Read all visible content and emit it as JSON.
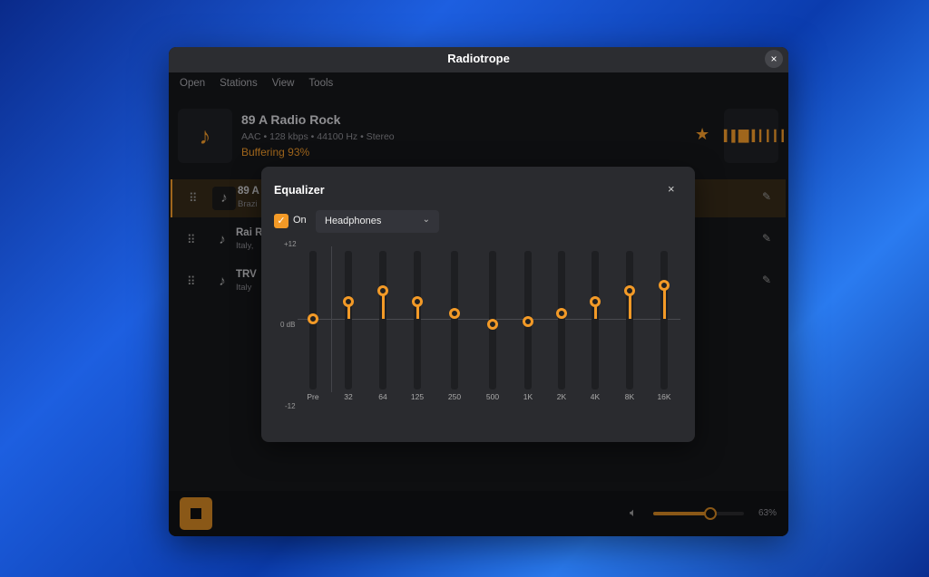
{
  "window": {
    "title": "Radiotrope",
    "close_icon": "×"
  },
  "menu": [
    "Open",
    "Stations",
    "View",
    "Tools"
  ],
  "now_playing": {
    "name": "89 A Radio Rock",
    "info": "AAC • 128 kbps • 44100 Hz • Stereo",
    "status": "Buffering 93%",
    "buffer_percent": 93,
    "favorite_icon": "★",
    "accent": "#f39a27"
  },
  "stations": [
    {
      "name": "89 A",
      "sub": "Brazi",
      "active": true
    },
    {
      "name": "Rai R",
      "sub": "Italy, ",
      "active": false
    },
    {
      "name": "TRV",
      "sub": "Italy",
      "active": false
    }
  ],
  "player": {
    "volume_percent": 63,
    "volume_label": "63%"
  },
  "equalizer": {
    "title": "Equalizer",
    "close_icon": "×",
    "on_label": "On",
    "enabled": true,
    "preset": "Headphones",
    "scale": {
      "max": "+12",
      "mid": "0 dB",
      "min": "-12"
    },
    "range_db": [
      -12,
      12
    ],
    "bands": [
      {
        "label": "Pre",
        "gain": 0
      },
      {
        "label": "32",
        "gain": 3
      },
      {
        "label": "64",
        "gain": 5
      },
      {
        "label": "125",
        "gain": 3
      },
      {
        "label": "250",
        "gain": 1
      },
      {
        "label": "500",
        "gain": -1
      },
      {
        "label": "1K",
        "gain": -0.5
      },
      {
        "label": "2K",
        "gain": 1
      },
      {
        "label": "4K",
        "gain": 3
      },
      {
        "label": "8K",
        "gain": 5
      },
      {
        "label": "16K",
        "gain": 6
      }
    ]
  }
}
